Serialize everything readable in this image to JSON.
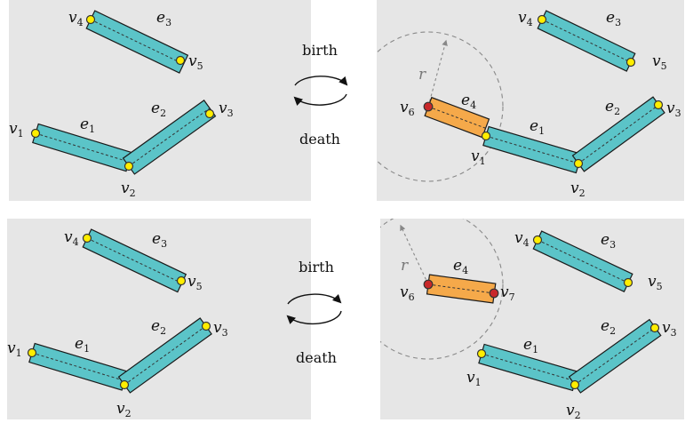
{
  "top_row": {
    "op_birth": "birth",
    "op_death": "death"
  },
  "bottom_row": {
    "op_birth": "birth",
    "op_death": "death"
  },
  "radius_label": "r",
  "vertex_labels": {
    "v1": "v",
    "v1_sub": "1",
    "v2": "v",
    "v2_sub": "2",
    "v3": "v",
    "v3_sub": "3",
    "v4": "v",
    "v4_sub": "4",
    "v5": "v",
    "v5_sub": "5",
    "v6": "v",
    "v6_sub": "6",
    "v7": "v",
    "v7_sub": "7"
  },
  "edge_labels": {
    "e1": "e",
    "e1_sub": "1",
    "e2": "e",
    "e2_sub": "2",
    "e3": "e",
    "e3_sub": "3",
    "e4": "e",
    "e4_sub": "4"
  },
  "colors": {
    "panel": "#e6e6e6",
    "segment": "#5bc4c8",
    "new_segment": "#f5a94a",
    "vertex": "#ffee00",
    "new_vertex": "#c8282a"
  }
}
